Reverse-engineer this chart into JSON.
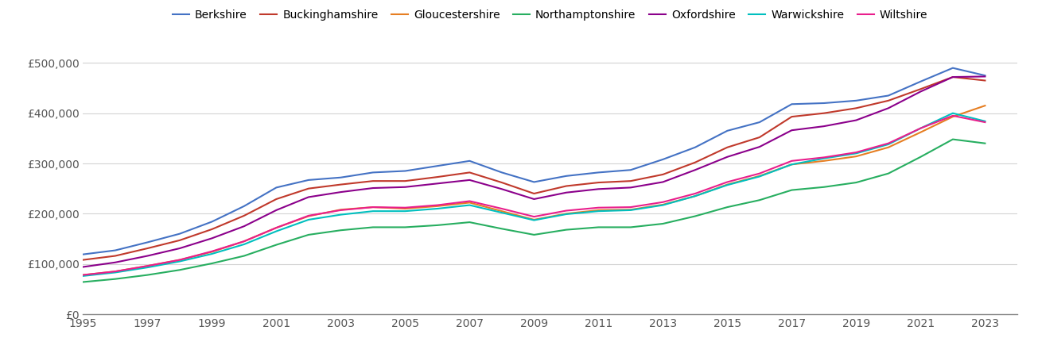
{
  "title": "",
  "years": [
    1995,
    1996,
    1997,
    1998,
    1999,
    2000,
    2001,
    2002,
    2003,
    2004,
    2005,
    2006,
    2007,
    2008,
    2009,
    2010,
    2011,
    2012,
    2013,
    2014,
    2015,
    2016,
    2017,
    2018,
    2019,
    2020,
    2021,
    2022,
    2023
  ],
  "series": {
    "Berkshire": [
      119000,
      127000,
      143000,
      160000,
      184000,
      215000,
      252000,
      267000,
      272000,
      282000,
      285000,
      295000,
      305000,
      282000,
      263000,
      275000,
      282000,
      287000,
      308000,
      332000,
      365000,
      382000,
      418000,
      420000,
      425000,
      435000,
      463000,
      490000,
      475000
    ],
    "Buckinghamshire": [
      108000,
      116000,
      131000,
      147000,
      169000,
      196000,
      229000,
      250000,
      258000,
      265000,
      265000,
      273000,
      282000,
      262000,
      240000,
      255000,
      262000,
      265000,
      278000,
      302000,
      332000,
      352000,
      393000,
      400000,
      410000,
      425000,
      448000,
      472000,
      465000
    ],
    "Gloucestershire": [
      78000,
      85000,
      96000,
      108000,
      124000,
      145000,
      172000,
      195000,
      208000,
      213000,
      210000,
      215000,
      222000,
      205000,
      188000,
      200000,
      207000,
      208000,
      218000,
      235000,
      258000,
      275000,
      298000,
      305000,
      314000,
      332000,
      362000,
      393000,
      415000
    ],
    "Northamptonshire": [
      64000,
      70000,
      78000,
      88000,
      101000,
      116000,
      138000,
      158000,
      167000,
      173000,
      173000,
      177000,
      183000,
      170000,
      158000,
      168000,
      173000,
      173000,
      180000,
      195000,
      213000,
      227000,
      247000,
      253000,
      262000,
      280000,
      313000,
      348000,
      340000
    ],
    "Oxfordshire": [
      94000,
      103000,
      116000,
      131000,
      151000,
      175000,
      207000,
      233000,
      243000,
      251000,
      253000,
      260000,
      267000,
      249000,
      229000,
      242000,
      249000,
      252000,
      263000,
      287000,
      313000,
      333000,
      366000,
      374000,
      386000,
      410000,
      443000,
      472000,
      473000
    ],
    "Warwickshire": [
      76000,
      83000,
      93000,
      105000,
      120000,
      139000,
      165000,
      188000,
      198000,
      205000,
      205000,
      210000,
      217000,
      202000,
      187000,
      199000,
      205000,
      207000,
      217000,
      235000,
      257000,
      274000,
      298000,
      310000,
      320000,
      338000,
      370000,
      400000,
      384000
    ],
    "Wiltshire": [
      78000,
      85000,
      96000,
      108000,
      125000,
      145000,
      172000,
      196000,
      207000,
      213000,
      212000,
      217000,
      225000,
      210000,
      194000,
      206000,
      212000,
      213000,
      223000,
      240000,
      263000,
      280000,
      305000,
      312000,
      322000,
      340000,
      370000,
      395000,
      382000
    ]
  },
  "colors": {
    "Berkshire": "#4472C4",
    "Buckinghamshire": "#C0392B",
    "Gloucestershire": "#E67E22",
    "Northamptonshire": "#27AE60",
    "Oxfordshire": "#8B008B",
    "Warwickshire": "#00BFBF",
    "Wiltshire": "#E91E8C"
  },
  "ylim": [
    0,
    540000
  ],
  "yticks": [
    0,
    100000,
    200000,
    300000,
    400000,
    500000
  ],
  "xticks": [
    1995,
    1997,
    1999,
    2001,
    2003,
    2005,
    2007,
    2009,
    2011,
    2013,
    2015,
    2017,
    2019,
    2021,
    2023
  ],
  "xlim": [
    1995,
    2024
  ],
  "background_color": "#ffffff",
  "grid_color": "#d3d3d3",
  "legend_order": [
    "Berkshire",
    "Buckinghamshire",
    "Gloucestershire",
    "Northamptonshire",
    "Oxfordshire",
    "Warwickshire",
    "Wiltshire"
  ]
}
